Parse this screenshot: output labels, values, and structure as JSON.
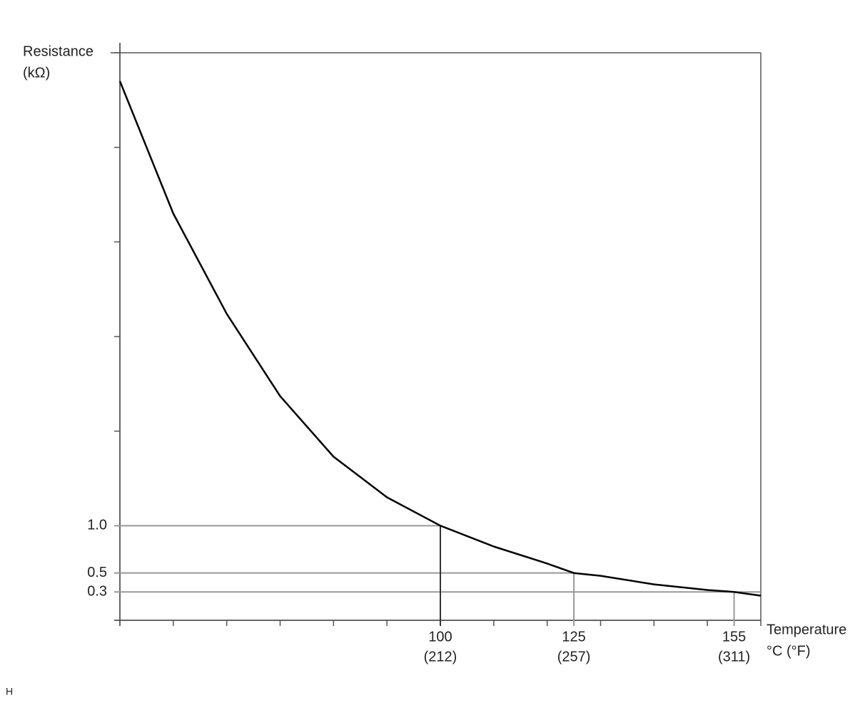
{
  "chart_data": {
    "type": "line",
    "y_label": [
      "Resistance",
      "(kΩ)"
    ],
    "x_label": [
      "Temperature",
      "°C (°F)"
    ],
    "footnote": "H",
    "x": [
      40,
      50,
      60,
      70,
      80,
      90,
      100,
      110,
      120,
      125,
      130,
      140,
      150,
      155,
      160
    ],
    "series": [
      {
        "color": "#000000",
        "values": [
          5.7,
          4.3,
          3.24,
          2.37,
          1.73,
          1.3,
          1.0,
          0.78,
          0.6,
          0.5,
          0.47,
          0.38,
          0.32,
          0.3,
          0.26
        ]
      }
    ],
    "xlim": [
      40,
      160
    ],
    "ylim": [
      0,
      6
    ],
    "xticks": [
      {
        "value": 100,
        "label": "100",
        "label_f": "(212)"
      },
      {
        "value": 125,
        "label": "125",
        "label_f": "(257)"
      },
      {
        "value": 155,
        "label": "155",
        "label_f": "(311)"
      }
    ],
    "yticks": [
      {
        "value": 1,
        "label": "1.0"
      },
      0.5,
      0.3
    ],
    "xminor_ticks": [
      40,
      50,
      60,
      70,
      80,
      90,
      110,
      120,
      130,
      140,
      150,
      160
    ],
    "yminor_ticks": [
      2,
      3,
      4,
      5,
      6
    ]
  }
}
